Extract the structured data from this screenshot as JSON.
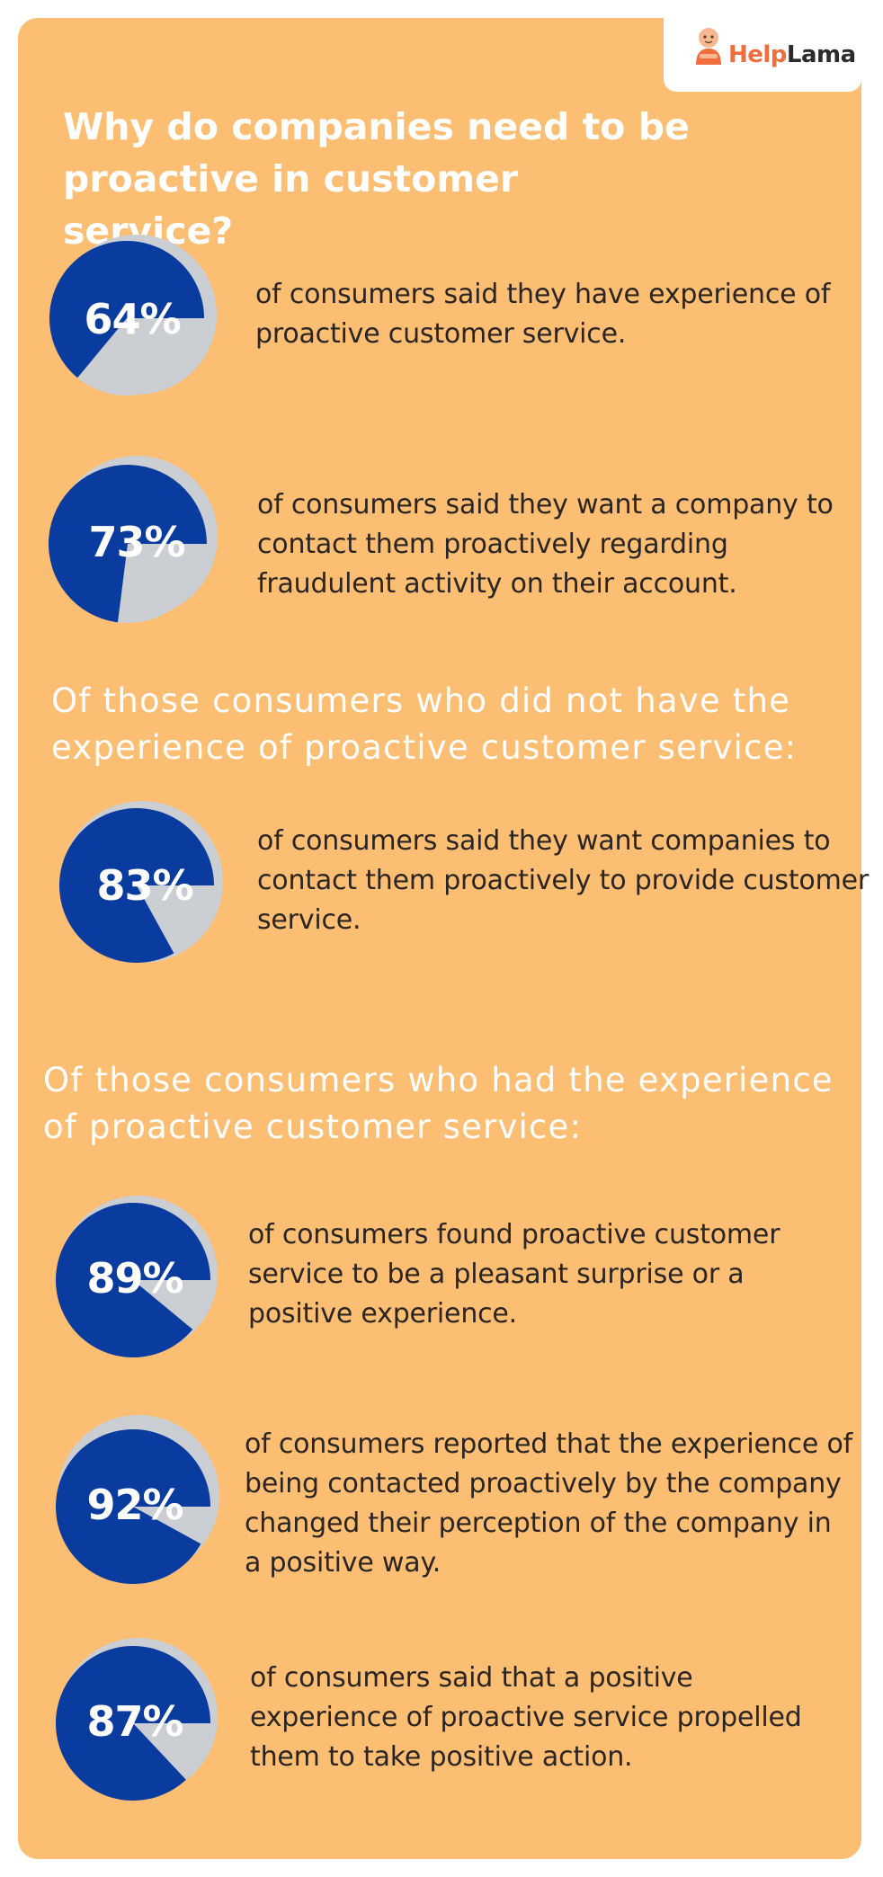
{
  "logo": {
    "brand_part1": "Help",
    "brand_part2": "Lama"
  },
  "title": "Why do companies need to be proactive in customer service?",
  "section_headings": [
    "Of those consumers who did not have the experience of proactive customer service:",
    "Of those consumers who had the experience of proactive customer service:"
  ],
  "colors": {
    "background": "#fcbe73",
    "pie_primary": "#0a3b9e",
    "pie_remainder": "#cbcfd3",
    "text_dark": "#2a2522",
    "text_light": "#ffffff",
    "brand_accent": "#f26d3d"
  },
  "icons": {
    "logo": "monk-mascot-icon"
  },
  "chart_data": [
    {
      "type": "pie",
      "values": [
        64,
        36
      ],
      "label": "64%",
      "caption": "of consumers said they have experience of proactive customer service."
    },
    {
      "type": "pie",
      "values": [
        73,
        27
      ],
      "label": "73%",
      "caption": "of consumers said they want a company to contact them proactively regarding fraudulent activity on their account."
    },
    {
      "type": "pie",
      "values": [
        83,
        17
      ],
      "label": "83%",
      "caption": "of consumers said they want companies to contact them proactively to provide customer service."
    },
    {
      "type": "pie",
      "values": [
        89,
        11
      ],
      "label": "89%",
      "caption": "of consumers found proactive customer service to be a pleasant surprise or a positive experience."
    },
    {
      "type": "pie",
      "values": [
        92,
        8
      ],
      "label": "92%",
      "caption": "of consumers reported that the experience of being contacted proactively by the company changed their perception of the company in a positive way."
    },
    {
      "type": "pie",
      "values": [
        87,
        13
      ],
      "label": "87%",
      "caption": "of consumers said that a positive experience of proactive service propelled them to take positive action."
    }
  ]
}
